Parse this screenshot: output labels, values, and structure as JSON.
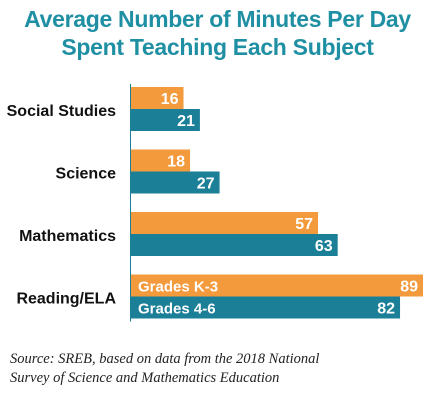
{
  "title": {
    "line1": "Average Number of Minutes Per Day",
    "line2": "Spent Teaching Each Subject"
  },
  "source": {
    "line1": "Source: SREB, based on data from the 2018 National",
    "line2": "Survey of Science and Mathematics Education"
  },
  "chart_data": {
    "type": "bar",
    "orientation": "horizontal",
    "categories": [
      "Social Studies",
      "Science",
      "Mathematics",
      "Reading/ELA"
    ],
    "series": [
      {
        "name": "Grades K-3",
        "values": [
          16,
          18,
          57,
          89
        ],
        "color": "#f39a3c"
      },
      {
        "name": "Grades 4-6",
        "values": [
          21,
          27,
          63,
          82
        ],
        "color": "#1b7f97"
      }
    ],
    "xlim": [
      0,
      89
    ],
    "axis": {
      "visible": false
    },
    "legend": {
      "placement": "inside-bars",
      "category": "Reading/ELA"
    },
    "grid": false
  }
}
